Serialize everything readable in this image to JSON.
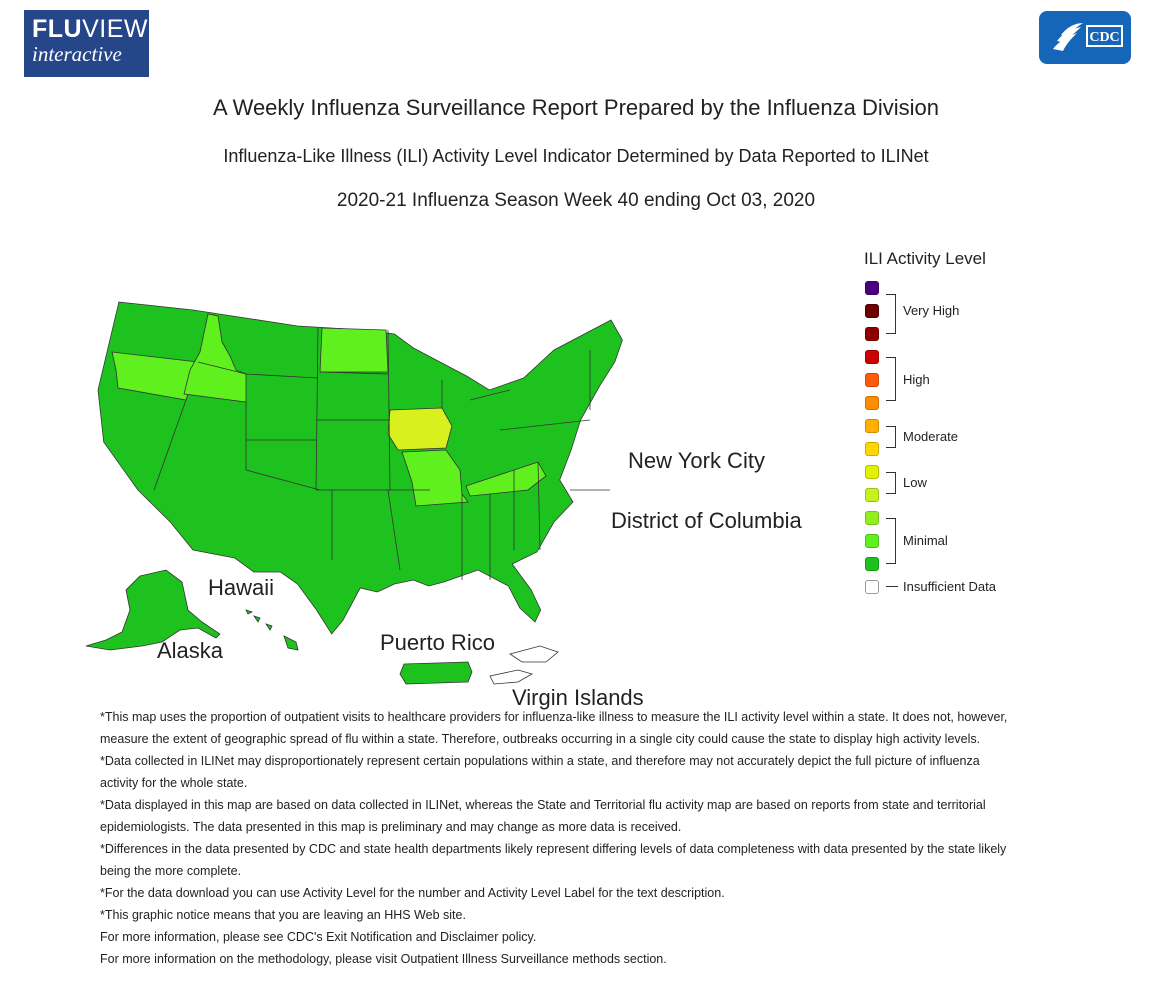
{
  "header": {
    "fluview_logo": {
      "line1_bold": "FLU",
      "line1_rest": "VIEW",
      "line2": "interactive"
    },
    "cdc_logo_text": "CDC",
    "title": "A Weekly Influenza Surveillance Report Prepared by the Influenza Division",
    "subtitle": "Influenza-Like Illness (ILI) Activity Level Indicator Determined by Data Reported to ILINet",
    "season": "2020-21 Influenza Season Week 40 ending Oct 03, 2020"
  },
  "map": {
    "labels": {
      "nyc": "New York City",
      "dc": "District of Columbia",
      "hawaii": "Hawaii",
      "alaska": "Alaska",
      "puerto_rico": "Puerto Rico",
      "virgin_islands": "Virgin Islands"
    },
    "colors": {
      "minimal_dark": "#1ec21e",
      "minimal_mid": "#5ff01e",
      "low_yellow": "#d8f01e",
      "insufficient": "#ffffff",
      "border": "#333333"
    },
    "states_by_level": {
      "minimal_1": [
        "Washington",
        "California",
        "Nevada",
        "Utah",
        "Arizona",
        "Montana",
        "Wyoming",
        "Colorado",
        "New Mexico",
        "South Dakota",
        "Nebraska",
        "Kansas",
        "Oklahoma",
        "Texas",
        "Minnesota",
        "Wisconsin",
        "Michigan",
        "Illinois",
        "Indiana",
        "Ohio",
        "Arkansas",
        "Louisiana",
        "Mississippi",
        "Alabama",
        "Georgia",
        "Florida",
        "South Carolina",
        "North Carolina",
        "Tennessee",
        "Virginia",
        "West Virginia",
        "Pennsylvania",
        "New York",
        "Maine",
        "Vermont",
        "New Hampshire",
        "Massachusetts",
        "Connecticut",
        "Rhode Island",
        "New Jersey",
        "Delaware",
        "Maryland",
        "Alaska",
        "Hawaii",
        "Puerto Rico",
        "New York City",
        "District of Columbia"
      ],
      "minimal_2": [
        "Oregon",
        "Idaho",
        "North Dakota",
        "Missouri",
        "Kentucky"
      ],
      "low_1": [
        "Iowa"
      ],
      "insufficient": [
        "Virgin Islands"
      ]
    }
  },
  "legend": {
    "title": "ILI Activity Level",
    "swatches": [
      "#4b0082",
      "#6b0000",
      "#8e0000",
      "#cc0000",
      "#ff5a0a",
      "#ff8c00",
      "#ffb000",
      "#ffd700",
      "#e0f000",
      "#c8f01e",
      "#90f01e",
      "#5ff01e",
      "#1ec21e",
      "#ffffff"
    ],
    "groups": [
      {
        "label": "Very High"
      },
      {
        "label": "High"
      },
      {
        "label": "Moderate"
      },
      {
        "label": "Low"
      },
      {
        "label": "Minimal"
      },
      {
        "label": "Insufficient Data"
      }
    ]
  },
  "notes": [
    "*This map uses the proportion of outpatient visits to healthcare providers for influenza-like illness to measure the ILI activity level within a state. It does not, however, measure the extent of geographic spread of flu within a state. Therefore, outbreaks occurring in a single city could cause the state to display high activity levels.",
    "*Data collected in ILINet may disproportionately represent certain populations within a state, and therefore may not accurately depict the full picture of influenza activity for the whole state.",
    "*Data displayed in this map are based on data collected in ILINet, whereas the State and Territorial flu activity map are based on reports from state and territorial epidemiologists. The data presented in this map is preliminary and may change as more data is received.",
    "*Differences in the data presented by CDC and state health departments likely represent differing levels of data completeness with data presented by the state likely being the more complete.",
    "*For the data download you can use Activity Level for the number and Activity Level Label for the text description.",
    "*This graphic notice means that you are leaving an HHS Web site.",
    "For more information, please see CDC's Exit Notification and Disclaimer policy.",
    "For more information on the methodology, please visit Outpatient Illness Surveillance methods section."
  ]
}
